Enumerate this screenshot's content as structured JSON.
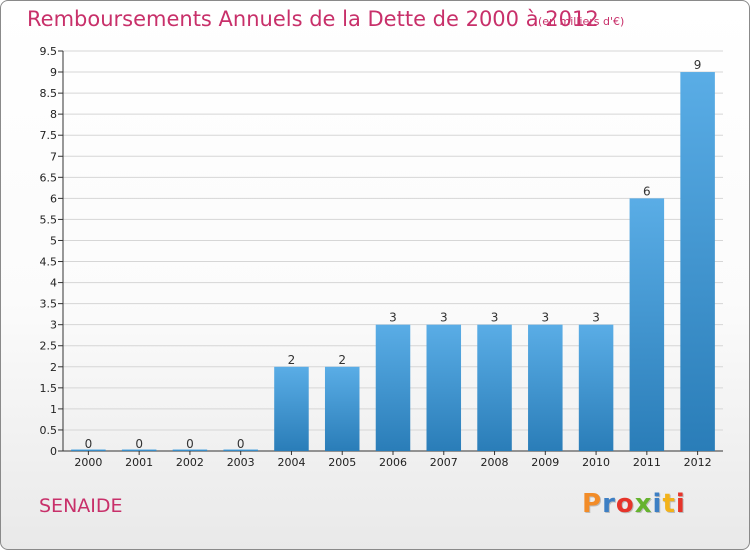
{
  "header": {
    "title": "Remboursements Annuels de la Dette de 2000 à 2012",
    "subtitle": "(en milliers d'€)"
  },
  "footer": {
    "commune": "SENAIDE",
    "logo_text": "Proxiti",
    "logo_colors": [
      "#f28c28",
      "#3d7fc4",
      "#e6342a",
      "#66b32e",
      "#3d7fc4",
      "#f2b21a",
      "#e6342a"
    ]
  },
  "colors": {
    "title": "#c8306a",
    "bar_light": "#5aade6",
    "bar_dark": "#2a7db8",
    "grid": "#d6d6d6",
    "axis": "#333333"
  },
  "chart_data": {
    "type": "bar",
    "categories": [
      "2000",
      "2001",
      "2002",
      "2003",
      "2004",
      "2005",
      "2006",
      "2007",
      "2008",
      "2009",
      "2010",
      "2011",
      "2012"
    ],
    "values": [
      0,
      0,
      0,
      0,
      2,
      2,
      3,
      3,
      3,
      3,
      3,
      6,
      9
    ],
    "data_labels": [
      "0",
      "0",
      "0",
      "0",
      "2",
      "2",
      "3",
      "3",
      "3",
      "3",
      "3",
      "6",
      "9"
    ],
    "title": "Remboursements Annuels de la Dette de 2000 à 2012",
    "xlabel": "",
    "ylabel": "",
    "ylim": [
      0,
      9.5
    ],
    "yticks": [
      "0",
      "0.5",
      "1",
      "1.5",
      "2",
      "2.5",
      "3",
      "3.5",
      "4",
      "4.5",
      "5",
      "5.5",
      "6",
      "6.5",
      "7",
      "7.5",
      "8",
      "8.5",
      "9",
      "9.5"
    ],
    "grid": true,
    "legend": "none"
  }
}
